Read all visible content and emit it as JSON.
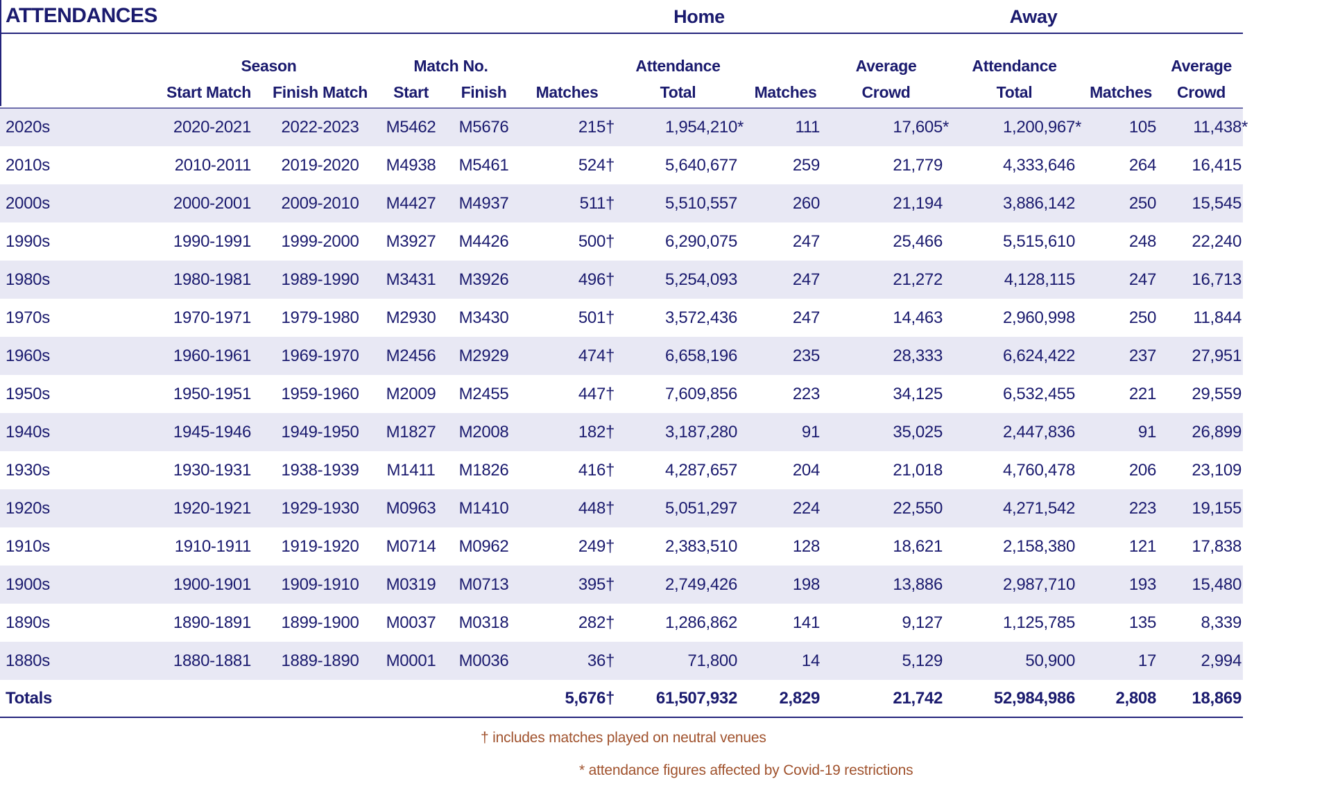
{
  "title": "ATTENDANCES",
  "sections": {
    "home": "Home",
    "away": "Away"
  },
  "table": {
    "group_headers": {
      "season": "Season",
      "match_no": "Match No.",
      "attendance_home": "Attendance",
      "average_home": "Average",
      "attendance_away": "Attendance",
      "average_away": "Average"
    },
    "columns": [
      {
        "key": "decade",
        "label": ""
      },
      {
        "key": "start_match",
        "label": "Start Match"
      },
      {
        "key": "finish_match",
        "label": "Finish Match"
      },
      {
        "key": "match_no_start",
        "label": "Start"
      },
      {
        "key": "match_no_finish",
        "label": "Finish"
      },
      {
        "key": "matches_total",
        "label": "Matches"
      },
      {
        "key": "attendance_total_home",
        "label": "Total"
      },
      {
        "key": "matches_home",
        "label": "Matches"
      },
      {
        "key": "average_crowd_home",
        "label": "Crowd"
      },
      {
        "key": "attendance_total_away",
        "label": "Total"
      },
      {
        "key": "matches_away",
        "label": "Matches"
      },
      {
        "key": "average_crowd_away",
        "label": "Crowd"
      }
    ],
    "rows": [
      [
        "2020s",
        "2020-2021",
        "2022-2023",
        "M5462",
        "M5676",
        "215†",
        "1,954,210*",
        "111",
        "17,605*",
        "1,200,967*",
        "105",
        "11,438*"
      ],
      [
        "2010s",
        "2010-2011",
        "2019-2020",
        "M4938",
        "M5461",
        "524†",
        "5,640,677",
        "259",
        "21,779",
        "4,333,646",
        "264",
        "16,415"
      ],
      [
        "2000s",
        "2000-2001",
        "2009-2010",
        "M4427",
        "M4937",
        "511†",
        "5,510,557",
        "260",
        "21,194",
        "3,886,142",
        "250",
        "15,545"
      ],
      [
        "1990s",
        "1990-1991",
        "1999-2000",
        "M3927",
        "M4426",
        "500†",
        "6,290,075",
        "247",
        "25,466",
        "5,515,610",
        "248",
        "22,240"
      ],
      [
        "1980s",
        "1980-1981",
        "1989-1990",
        "M3431",
        "M3926",
        "496†",
        "5,254,093",
        "247",
        "21,272",
        "4,128,115",
        "247",
        "16,713"
      ],
      [
        "1970s",
        "1970-1971",
        "1979-1980",
        "M2930",
        "M3430",
        "501†",
        "3,572,436",
        "247",
        "14,463",
        "2,960,998",
        "250",
        "11,844"
      ],
      [
        "1960s",
        "1960-1961",
        "1969-1970",
        "M2456",
        "M2929",
        "474†",
        "6,658,196",
        "235",
        "28,333",
        "6,624,422",
        "237",
        "27,951"
      ],
      [
        "1950s",
        "1950-1951",
        "1959-1960",
        "M2009",
        "M2455",
        "447†",
        "7,609,856",
        "223",
        "34,125",
        "6,532,455",
        "221",
        "29,559"
      ],
      [
        "1940s",
        "1945-1946",
        "1949-1950",
        "M1827",
        "M2008",
        "182†",
        "3,187,280",
        "91",
        "35,025",
        "2,447,836",
        "91",
        "26,899"
      ],
      [
        "1930s",
        "1930-1931",
        "1938-1939",
        "M1411",
        "M1826",
        "416†",
        "4,287,657",
        "204",
        "21,018",
        "4,760,478",
        "206",
        "23,109"
      ],
      [
        "1920s",
        "1920-1921",
        "1929-1930",
        "M0963",
        "M1410",
        "448†",
        "5,051,297",
        "224",
        "22,550",
        "4,271,542",
        "223",
        "19,155"
      ],
      [
        "1910s",
        "1910-1911",
        "1919-1920",
        "M0714",
        "M0962",
        "249†",
        "2,383,510",
        "128",
        "18,621",
        "2,158,380",
        "121",
        "17,838"
      ],
      [
        "1900s",
        "1900-1901",
        "1909-1910",
        "M0319",
        "M0713",
        "395†",
        "2,749,426",
        "198",
        "13,886",
        "2,987,710",
        "193",
        "15,480"
      ],
      [
        "1890s",
        "1890-1891",
        "1899-1900",
        "M0037",
        "M0318",
        "282†",
        "1,286,862",
        "141",
        "9,127",
        "1,125,785",
        "135",
        "8,339"
      ],
      [
        "1880s",
        "1880-1881",
        "1889-1890",
        "M0001",
        "M0036",
        "36†",
        "71,800",
        "14",
        "5,129",
        "50,900",
        "17",
        "2,994"
      ]
    ],
    "totals": [
      "Totals",
      "",
      "",
      "",
      "",
      "5,676†",
      "61,507,932",
      "2,829",
      "21,742",
      "52,984,986",
      "2,808",
      "18,869"
    ]
  },
  "footnotes": [
    "† includes matches played on neutral venues",
    "* attendance figures affected by Covid-19 restrictions"
  ],
  "colors": {
    "text_navy": "#1a1a6e",
    "row_alt_lavender": "#e8e8f4",
    "rule_navy": "#23237b",
    "header_rule_slate": "#6d6dab",
    "footnote_brown": "#a0522d"
  }
}
